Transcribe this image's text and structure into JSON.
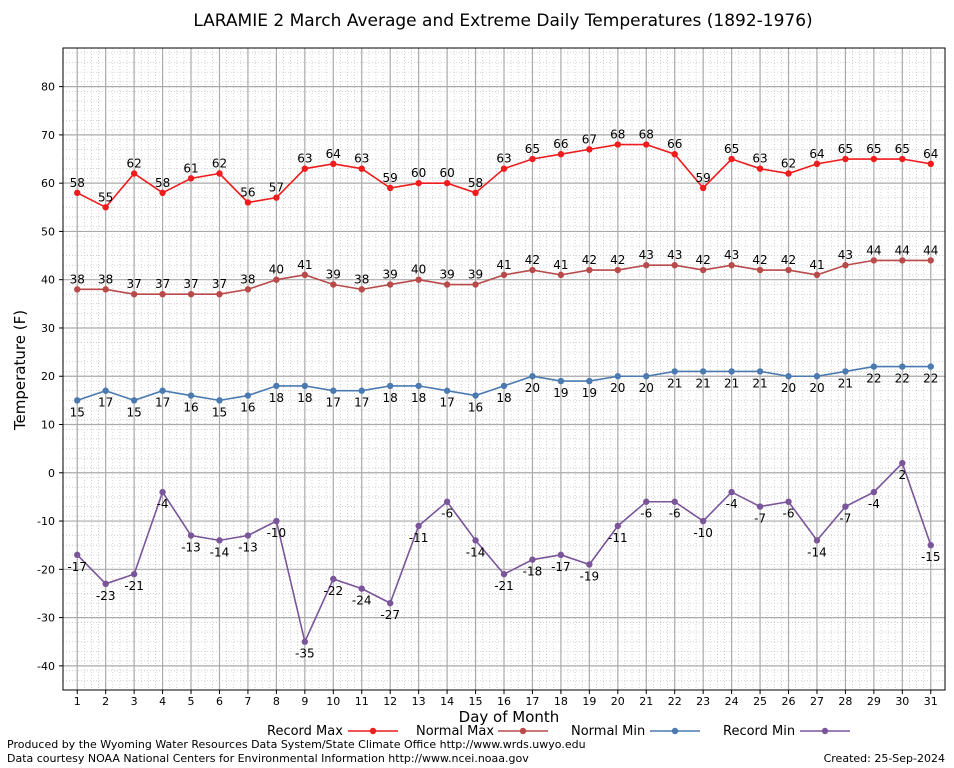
{
  "chart_data": {
    "type": "line",
    "title": "LARAMIE 2 March Average and Extreme Daily Temperatures (1892-1976)",
    "xlabel": "Day of Month",
    "ylabel": "Temperature (F)",
    "x": [
      1,
      2,
      3,
      4,
      5,
      6,
      7,
      8,
      9,
      10,
      11,
      12,
      13,
      14,
      15,
      16,
      17,
      18,
      19,
      20,
      21,
      22,
      23,
      24,
      25,
      26,
      27,
      28,
      29,
      30,
      31
    ],
    "ylim": [
      -45,
      88
    ],
    "yticks": [
      -40,
      -30,
      -20,
      -10,
      0,
      10,
      20,
      30,
      40,
      50,
      60,
      70,
      80
    ],
    "grid": true,
    "legend_position": "bottom",
    "series": [
      {
        "name": "Record Max",
        "color": "#ee1c1c",
        "label_position": "above",
        "values": [
          58,
          55,
          62,
          58,
          61,
          62,
          56,
          57,
          63,
          64,
          63,
          59,
          60,
          60,
          58,
          63,
          65,
          66,
          67,
          68,
          68,
          66,
          59,
          65,
          63,
          62,
          64,
          65,
          65,
          65,
          64
        ]
      },
      {
        "name": "Normal Max",
        "color": "#b84a4a",
        "label_position": "above",
        "values": [
          38,
          38,
          37,
          37,
          37,
          37,
          38,
          40,
          41,
          39,
          38,
          39,
          40,
          39,
          39,
          41,
          42,
          41,
          42,
          42,
          43,
          43,
          42,
          43,
          42,
          42,
          41,
          43,
          44,
          44,
          44
        ]
      },
      {
        "name": "Normal Min",
        "color": "#4a7ab0",
        "label_position": "below",
        "values": [
          15,
          17,
          15,
          17,
          16,
          15,
          16,
          18,
          18,
          17,
          17,
          18,
          18,
          17,
          16,
          18,
          20,
          19,
          19,
          20,
          20,
          21,
          21,
          21,
          21,
          20,
          20,
          21,
          22,
          22,
          22
        ]
      },
      {
        "name": "Record Min",
        "color": "#7a559a",
        "label_position": "below",
        "values": [
          -17,
          -23,
          -21,
          -4,
          -13,
          -14,
          -13,
          -10,
          -35,
          -22,
          -24,
          -27,
          -11,
          -6,
          -14,
          -21,
          -18,
          -17,
          -19,
          -11,
          -6,
          -6,
          -10,
          -4,
          -7,
          -6,
          -14,
          -7,
          -4,
          2,
          -15
        ]
      }
    ]
  },
  "footer": {
    "credit_line1": "Produced by the Wyoming Water Resources Data System/State Climate Office http://www.wrds.uwyo.edu",
    "credit_line2": "Data courtesy NOAA National Centers for Environmental Information http://www.ncei.noaa.gov",
    "created": "Created:  25-Sep-2024"
  }
}
